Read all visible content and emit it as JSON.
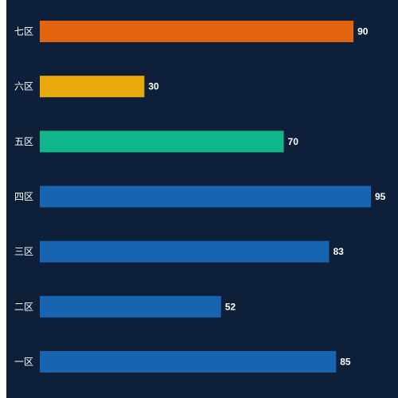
{
  "chart_data": {
    "type": "bar",
    "orientation": "horizontal",
    "categories": [
      "一区",
      "二区",
      "三区",
      "四区",
      "五区",
      "六区",
      "七区"
    ],
    "values": [
      85,
      52,
      83,
      95,
      70,
      30,
      90
    ],
    "bar_colors": [
      "#1764b1",
      "#1764b1",
      "#1764b1",
      "#1764b1",
      "#10b68b",
      "#e9aa0d",
      "#e3640f"
    ],
    "background": "#0e2039",
    "xlim": [
      0,
      95
    ],
    "grid": false,
    "legend": false,
    "data_labels": true
  }
}
